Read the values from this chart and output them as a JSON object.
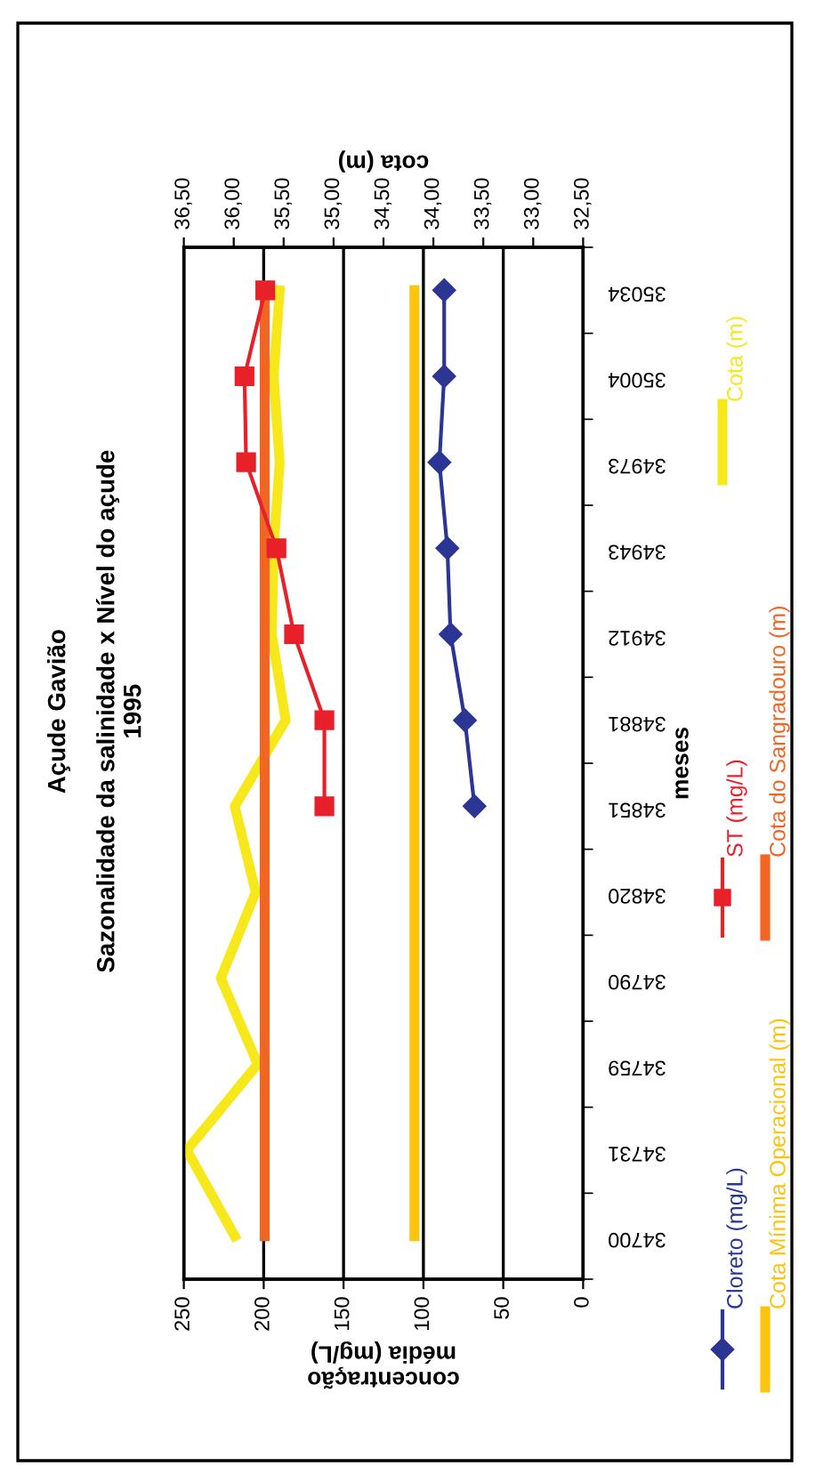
{
  "chart_data": {
    "type": "line",
    "orientation": "horizontal",
    "title": "Açude Gavião",
    "subtitle": "Sazonalidade da salinidade x Nível do açude\n1995",
    "xlabel": "concentração\nmédia (mg/L)",
    "x2label": "cota (m)",
    "ylabel": "meses",
    "categories": [
      "35034",
      "35004",
      "34973",
      "34943",
      "34912",
      "34881",
      "34851",
      "34820",
      "34790",
      "34759",
      "34731",
      "34700"
    ],
    "xlim": [
      250,
      0
    ],
    "xticks": [
      250,
      200,
      150,
      100,
      50,
      0
    ],
    "x2lim": [
      36.5,
      32.5
    ],
    "x2ticks": [
      {
        "value": 36.5,
        "label": "36,50"
      },
      {
        "value": 36.0,
        "label": "36,00"
      },
      {
        "value": 35.5,
        "label": "35,50"
      },
      {
        "value": 35.0,
        "label": "35,00"
      },
      {
        "value": 34.5,
        "label": "34,50"
      },
      {
        "value": 34.0,
        "label": "34,00"
      },
      {
        "value": 33.5,
        "label": "33,50"
      },
      {
        "value": 33.0,
        "label": "33,00"
      },
      {
        "value": 32.5,
        "label": "32,50"
      }
    ],
    "grid": "x",
    "legend": "right",
    "series": [
      {
        "name": "Cloreto (mg/L)",
        "color": "#2b3593",
        "marker": "diamond",
        "values": [
          87,
          87,
          90,
          85,
          83,
          74,
          68,
          null,
          null,
          null,
          null,
          null
        ]
      },
      {
        "name": "ST (mg/L)",
        "color": "#e8202a",
        "marker": "square",
        "values": [
          199,
          212,
          211,
          192,
          181,
          162,
          162,
          null,
          null,
          null,
          null,
          null
        ]
      },
      {
        "name": "Cota (m)",
        "color": "#f7e81c",
        "axis": "x2",
        "values": [
          35.54,
          35.6,
          35.54,
          35.6,
          35.62,
          35.48,
          35.99,
          35.78,
          36.13,
          35.76,
          36.47,
          35.99
        ]
      },
      {
        "name": "Cota Mínima Operacional (m)",
        "color": "#fcc30f",
        "axis": "x2",
        "values": [
          34.19,
          34.19,
          34.19,
          34.19,
          34.19,
          34.19,
          34.19,
          34.19,
          34.19,
          34.19,
          34.19,
          34.19
        ]
      },
      {
        "name": "Cota do Sangradouro (m)",
        "color": "#f26522",
        "axis": "x2",
        "values": [
          35.69,
          35.69,
          35.69,
          35.69,
          35.69,
          35.69,
          35.69,
          35.69,
          35.69,
          35.69,
          35.69,
          35.69
        ]
      }
    ]
  }
}
